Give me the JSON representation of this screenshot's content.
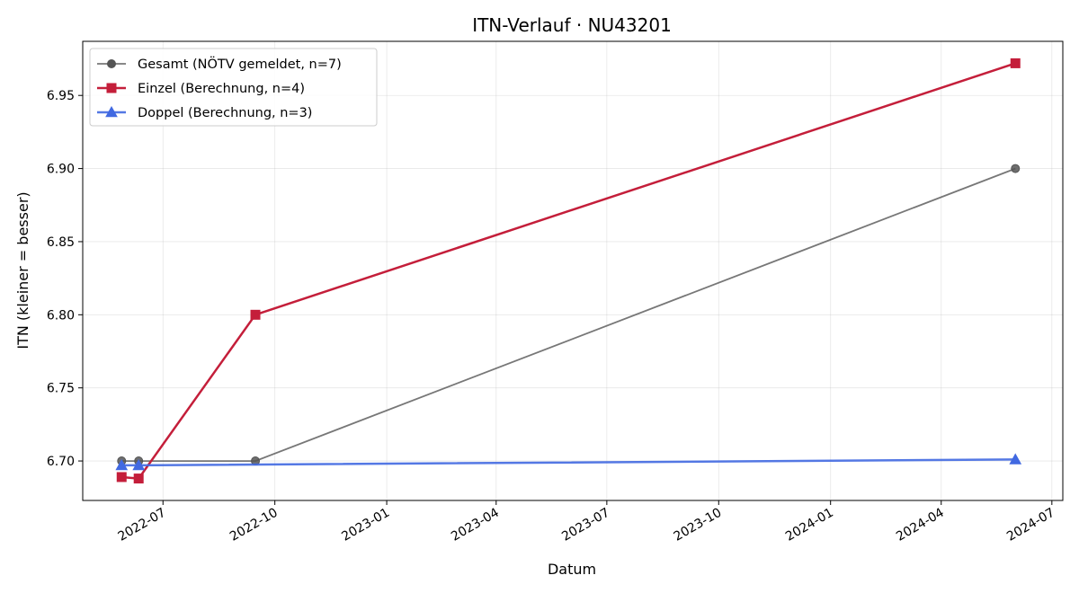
{
  "chart_data": {
    "type": "line",
    "title": "ITN-Verlauf · NU43201",
    "xlabel": "Datum",
    "ylabel": "ITN  (kleiner = besser)",
    "x_axis": "date",
    "xlim": [
      "2022-04-26",
      "2024-07-10"
    ],
    "ylim": [
      6.673,
      6.987
    ],
    "x_ticks": [
      "2022-07",
      "2022-10",
      "2023-01",
      "2023-04",
      "2023-07",
      "2023-10",
      "2024-01",
      "2024-04",
      "2024-07"
    ],
    "y_ticks": [
      "6.70",
      "6.75",
      "6.80",
      "6.85",
      "6.90",
      "6.95"
    ],
    "grid": true,
    "legend_position": "top-left",
    "series": [
      {
        "name": "Gesamt (NÖTV gemeldet, n=7)",
        "color": "#555555",
        "marker": "circle",
        "points": [
          {
            "x": "2022-05-28",
            "y": 6.7
          },
          {
            "x": "2022-06-11",
            "y": 6.7
          },
          {
            "x": "2022-09-15",
            "y": 6.7
          },
          {
            "x": "2024-06-01",
            "y": 6.9
          }
        ]
      },
      {
        "name": "Einzel (Berechnung, n=4)",
        "color": "#c41e3a",
        "marker": "square",
        "points": [
          {
            "x": "2022-05-28",
            "y": 6.689
          },
          {
            "x": "2022-06-11",
            "y": 6.688
          },
          {
            "x": "2022-09-15",
            "y": 6.8
          },
          {
            "x": "2024-06-01",
            "y": 6.972
          }
        ]
      },
      {
        "name": "Doppel (Berechnung, n=3)",
        "color": "#4169e1",
        "marker": "triangle",
        "points": [
          {
            "x": "2022-05-28",
            "y": 6.697
          },
          {
            "x": "2022-06-11",
            "y": 6.697
          },
          {
            "x": "2024-06-01",
            "y": 6.701
          }
        ]
      }
    ]
  }
}
